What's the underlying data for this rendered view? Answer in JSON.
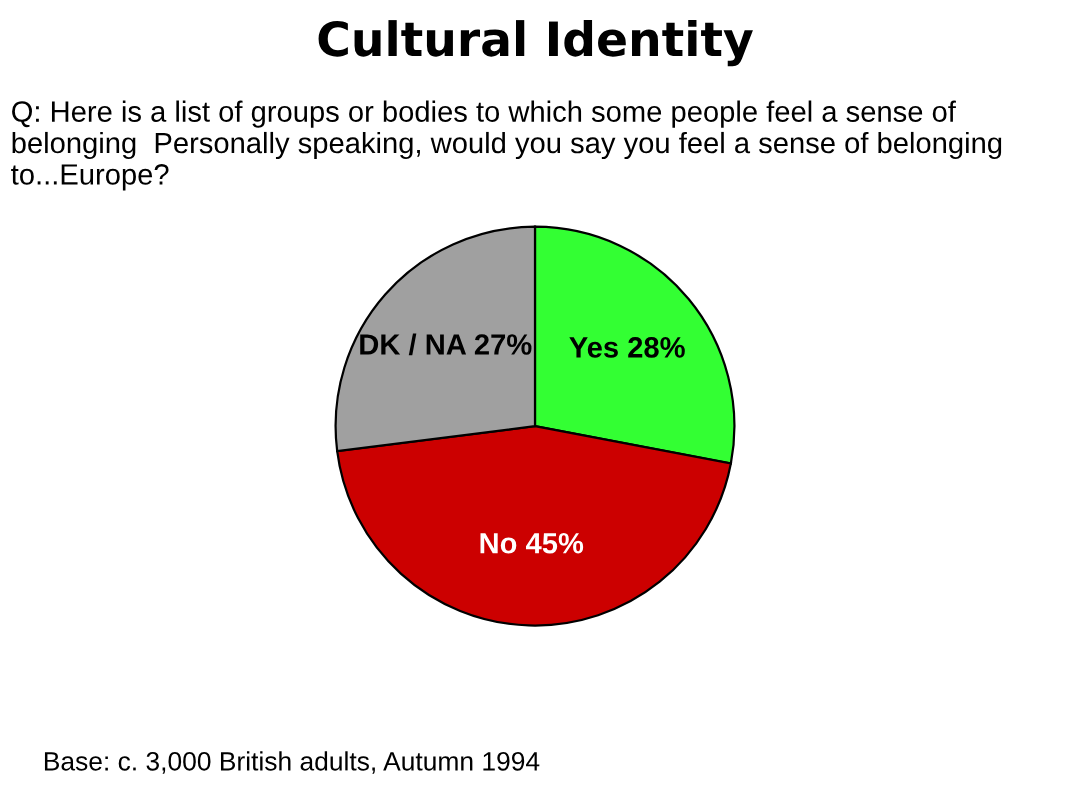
{
  "chart_data": {
    "type": "pie",
    "title": "Cultural Identity",
    "subtitle": "Q: Here is a list of groups or bodies to which some people feel a sense of belonging  Personally speaking, would you say you feel a sense of belonging to...Europe?",
    "categories": [
      "Yes",
      "No",
      "DK / NA"
    ],
    "values": [
      28,
      45,
      27
    ],
    "value_labels": [
      "28%",
      "45%",
      "27%"
    ],
    "colors": [
      "#33ff33",
      "#cc0000",
      "#a0a0a0"
    ],
    "legend": false,
    "annotations": [
      "Base: c. 3,000 British adults, Autumn 1994"
    ]
  }
}
